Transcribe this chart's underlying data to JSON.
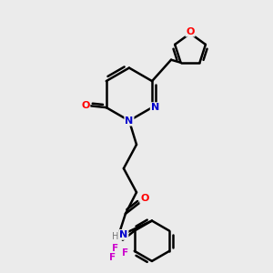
{
  "bg_color": "#ebebeb",
  "bond_color": "#000000",
  "bond_width": 1.8,
  "atom_colors": {
    "N": "#0000cc",
    "O": "#ff0000",
    "F": "#cc00cc",
    "H": "#777777"
  }
}
